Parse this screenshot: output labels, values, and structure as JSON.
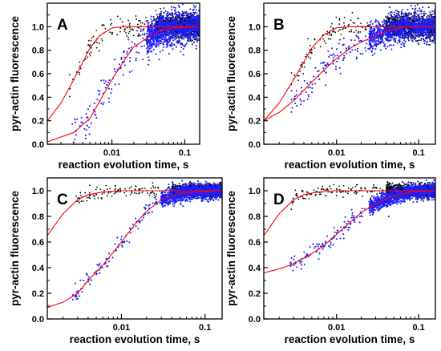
{
  "chart_data": [
    {
      "type": "scatter",
      "panel_label": "A",
      "xlabel": "reaction evolution time, s",
      "ylabel": "pyr-actin fluorescence",
      "x_scale": "log",
      "xlim": [
        0.0013,
        0.16
      ],
      "ylim": [
        0.0,
        1.2
      ],
      "x_ticks": [
        0.01,
        0.1
      ],
      "x_tick_labels": [
        "0.01",
        "0.1"
      ],
      "y_ticks": [
        0.0,
        0.2,
        0.4,
        0.6,
        0.8,
        1.0
      ],
      "y_tick_labels": [
        "0.0",
        "0.2",
        "0.4",
        "0.6",
        "0.8",
        "1.0"
      ],
      "grid": false,
      "legend": "none",
      "series": [
        {
          "color": "#000000",
          "kind": "points",
          "fit": [
            [
              0.0013,
              0.2
            ],
            [
              0.002,
              0.35
            ],
            [
              0.003,
              0.55
            ],
            [
              0.004,
              0.7
            ],
            [
              0.005,
              0.82
            ],
            [
              0.007,
              0.93
            ],
            [
              0.01,
              0.99
            ],
            [
              0.015,
              1.0
            ],
            [
              0.16,
              1.0
            ]
          ],
          "spread": 0.05,
          "x_start": 0.0026,
          "dense_from": 0.04
        },
        {
          "color": "#1f1fff",
          "kind": "points",
          "fit": [
            [
              0.0013,
              0.02
            ],
            [
              0.003,
              0.1
            ],
            [
              0.005,
              0.22
            ],
            [
              0.007,
              0.38
            ],
            [
              0.01,
              0.55
            ],
            [
              0.015,
              0.72
            ],
            [
              0.02,
              0.83
            ],
            [
              0.04,
              0.95
            ],
            [
              0.07,
              0.99
            ],
            [
              0.16,
              1.0
            ]
          ],
          "spread": 0.07,
          "x_start": 0.0028,
          "dense_from": 0.03
        },
        {
          "color": "#ff0000",
          "kind": "line",
          "points": [
            [
              0.0013,
              0.2
            ],
            [
              0.002,
              0.35
            ],
            [
              0.003,
              0.55
            ],
            [
              0.004,
              0.7
            ],
            [
              0.005,
              0.82
            ],
            [
              0.007,
              0.93
            ],
            [
              0.01,
              0.99
            ],
            [
              0.015,
              1.0
            ],
            [
              0.16,
              1.0
            ]
          ]
        },
        {
          "color": "#ff0000",
          "kind": "line",
          "points": [
            [
              0.0013,
              0.02
            ],
            [
              0.003,
              0.1
            ],
            [
              0.005,
              0.22
            ],
            [
              0.007,
              0.38
            ],
            [
              0.01,
              0.55
            ],
            [
              0.015,
              0.72
            ],
            [
              0.02,
              0.83
            ],
            [
              0.04,
              0.95
            ],
            [
              0.07,
              0.99
            ],
            [
              0.16,
              1.0
            ]
          ]
        }
      ]
    },
    {
      "type": "scatter",
      "panel_label": "B",
      "xlabel": "reaction evolution time, s",
      "ylabel": "pyr-actin fluorescence",
      "x_scale": "log",
      "xlim": [
        0.0013,
        0.16
      ],
      "ylim": [
        0.0,
        1.2
      ],
      "x_ticks": [
        0.01,
        0.1
      ],
      "x_tick_labels": [
        "0.01",
        "0.1"
      ],
      "y_ticks": [
        0.0,
        0.2,
        0.4,
        0.6,
        0.8,
        1.0
      ],
      "y_tick_labels": [
        "0.0",
        "0.2",
        "0.4",
        "0.6",
        "0.8",
        "1.0"
      ],
      "grid": false,
      "legend": "none",
      "series": [
        {
          "color": "#000000",
          "kind": "points",
          "fit": [
            [
              0.0013,
              0.2
            ],
            [
              0.002,
              0.35
            ],
            [
              0.003,
              0.55
            ],
            [
              0.004,
              0.7
            ],
            [
              0.005,
              0.82
            ],
            [
              0.007,
              0.93
            ],
            [
              0.01,
              0.99
            ],
            [
              0.015,
              1.0
            ],
            [
              0.16,
              1.0
            ]
          ],
          "spread": 0.05,
          "x_start": 0.0026,
          "dense_from": 0.04
        },
        {
          "color": "#1f1fff",
          "kind": "points",
          "fit": [
            [
              0.0013,
              0.2
            ],
            [
              0.002,
              0.27
            ],
            [
              0.003,
              0.37
            ],
            [
              0.005,
              0.53
            ],
            [
              0.007,
              0.63
            ],
            [
              0.01,
              0.73
            ],
            [
              0.015,
              0.82
            ],
            [
              0.02,
              0.87
            ],
            [
              0.04,
              0.96
            ],
            [
              0.07,
              1.0
            ],
            [
              0.16,
              1.0
            ]
          ],
          "spread": 0.06,
          "x_start": 0.0028,
          "dense_from": 0.025
        },
        {
          "color": "#ff0000",
          "kind": "line",
          "points": [
            [
              0.0013,
              0.2
            ],
            [
              0.002,
              0.35
            ],
            [
              0.003,
              0.55
            ],
            [
              0.004,
              0.7
            ],
            [
              0.005,
              0.82
            ],
            [
              0.007,
              0.93
            ],
            [
              0.01,
              0.99
            ],
            [
              0.015,
              1.0
            ],
            [
              0.16,
              1.0
            ]
          ]
        },
        {
          "color": "#ff0000",
          "kind": "line",
          "points": [
            [
              0.0013,
              0.2
            ],
            [
              0.002,
              0.27
            ],
            [
              0.003,
              0.37
            ],
            [
              0.005,
              0.53
            ],
            [
              0.007,
              0.63
            ],
            [
              0.01,
              0.73
            ],
            [
              0.015,
              0.82
            ],
            [
              0.02,
              0.87
            ],
            [
              0.04,
              0.96
            ],
            [
              0.07,
              1.0
            ],
            [
              0.16,
              1.0
            ]
          ]
        }
      ]
    },
    {
      "type": "scatter",
      "panel_label": "C",
      "xlabel": "reaction evolution time, s",
      "ylabel": "pyr-actin fluorescence",
      "x_scale": "log",
      "xlim": [
        0.0013,
        0.16
      ],
      "ylim": [
        0.0,
        1.1
      ],
      "x_ticks": [
        0.01,
        0.1
      ],
      "x_tick_labels": [
        "0.01",
        "0.1"
      ],
      "y_ticks": [
        0.0,
        0.2,
        0.4,
        0.6,
        0.8,
        1.0
      ],
      "y_tick_labels": [
        "0.0",
        "0.2",
        "0.4",
        "0.6",
        "0.8",
        "1.0"
      ],
      "grid": false,
      "legend": "none",
      "series": [
        {
          "color": "#000000",
          "kind": "points",
          "fit": [
            [
              0.0013,
              0.65
            ],
            [
              0.002,
              0.82
            ],
            [
              0.003,
              0.93
            ],
            [
              0.004,
              0.97
            ],
            [
              0.006,
              0.99
            ],
            [
              0.01,
              1.0
            ],
            [
              0.16,
              1.0
            ]
          ],
          "spread": 0.025,
          "x_start": 0.0028,
          "dense_from": 0.04
        },
        {
          "color": "#1f1fff",
          "kind": "points",
          "fit": [
            [
              0.0013,
              0.09
            ],
            [
              0.002,
              0.13
            ],
            [
              0.003,
              0.2
            ],
            [
              0.004,
              0.3
            ],
            [
              0.006,
              0.42
            ],
            [
              0.01,
              0.6
            ],
            [
              0.015,
              0.75
            ],
            [
              0.02,
              0.84
            ],
            [
              0.03,
              0.93
            ],
            [
              0.05,
              0.98
            ],
            [
              0.08,
              0.99
            ],
            [
              0.16,
              1.0
            ]
          ],
          "spread": 0.03,
          "x_start": 0.0026,
          "dense_from": 0.03
        },
        {
          "color": "#ff0000",
          "kind": "line",
          "points": [
            [
              0.0013,
              0.65
            ],
            [
              0.002,
              0.82
            ],
            [
              0.003,
              0.93
            ],
            [
              0.004,
              0.97
            ],
            [
              0.006,
              0.99
            ],
            [
              0.01,
              1.0
            ],
            [
              0.16,
              1.0
            ]
          ]
        },
        {
          "color": "#ff0000",
          "kind": "line",
          "points": [
            [
              0.0013,
              0.09
            ],
            [
              0.002,
              0.13
            ],
            [
              0.003,
              0.2
            ],
            [
              0.004,
              0.3
            ],
            [
              0.006,
              0.42
            ],
            [
              0.01,
              0.6
            ],
            [
              0.015,
              0.75
            ],
            [
              0.02,
              0.84
            ],
            [
              0.03,
              0.93
            ],
            [
              0.05,
              0.98
            ],
            [
              0.08,
              0.99
            ],
            [
              0.16,
              1.0
            ]
          ]
        }
      ]
    },
    {
      "type": "scatter",
      "panel_label": "D",
      "xlabel": "reaction evolution time, s",
      "ylabel": "pyr-actin fluorescence",
      "x_scale": "log",
      "xlim": [
        0.0013,
        0.16
      ],
      "ylim": [
        0.0,
        1.1
      ],
      "x_ticks": [
        0.01,
        0.1
      ],
      "x_tick_labels": [
        "0.01",
        "0.1"
      ],
      "y_ticks": [
        0.0,
        0.2,
        0.4,
        0.6,
        0.8,
        1.0
      ],
      "y_tick_labels": [
        "0.0",
        "0.2",
        "0.4",
        "0.6",
        "0.8",
        "1.0"
      ],
      "grid": false,
      "legend": "none",
      "series": [
        {
          "color": "#000000",
          "kind": "points",
          "fit": [
            [
              0.0013,
              0.65
            ],
            [
              0.002,
              0.82
            ],
            [
              0.003,
              0.93
            ],
            [
              0.004,
              0.97
            ],
            [
              0.006,
              0.99
            ],
            [
              0.01,
              1.0
            ],
            [
              0.16,
              1.0
            ]
          ],
          "spread": 0.025,
          "x_start": 0.0028,
          "dense_from": 0.04
        },
        {
          "color": "#1f1fff",
          "kind": "points",
          "fit": [
            [
              0.0013,
              0.36
            ],
            [
              0.002,
              0.39
            ],
            [
              0.003,
              0.43
            ],
            [
              0.005,
              0.51
            ],
            [
              0.007,
              0.57
            ],
            [
              0.01,
              0.66
            ],
            [
              0.015,
              0.76
            ],
            [
              0.02,
              0.83
            ],
            [
              0.03,
              0.9
            ],
            [
              0.05,
              0.96
            ],
            [
              0.08,
              0.99
            ],
            [
              0.16,
              1.0
            ]
          ],
          "spread": 0.03,
          "x_start": 0.0027,
          "dense_from": 0.025
        },
        {
          "color": "#ff0000",
          "kind": "line",
          "points": [
            [
              0.0013,
              0.65
            ],
            [
              0.002,
              0.82
            ],
            [
              0.003,
              0.93
            ],
            [
              0.004,
              0.97
            ],
            [
              0.006,
              0.99
            ],
            [
              0.01,
              1.0
            ],
            [
              0.16,
              1.0
            ]
          ]
        },
        {
          "color": "#ff0000",
          "kind": "line",
          "points": [
            [
              0.0013,
              0.36
            ],
            [
              0.002,
              0.39
            ],
            [
              0.003,
              0.43
            ],
            [
              0.005,
              0.51
            ],
            [
              0.007,
              0.57
            ],
            [
              0.01,
              0.66
            ],
            [
              0.015,
              0.76
            ],
            [
              0.02,
              0.83
            ],
            [
              0.03,
              0.9
            ],
            [
              0.05,
              0.96
            ],
            [
              0.08,
              0.99
            ],
            [
              0.16,
              1.0
            ]
          ]
        }
      ]
    }
  ]
}
